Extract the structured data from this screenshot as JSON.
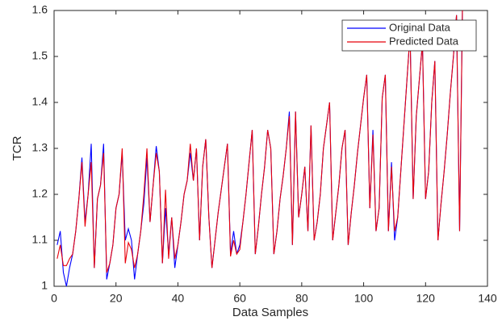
{
  "chart_data": {
    "type": "line",
    "xlabel": "Data Samples",
    "ylabel": "TCR",
    "x": [
      1,
      2,
      3,
      4,
      5,
      6,
      7,
      8,
      9,
      10,
      11,
      12,
      13,
      14,
      15,
      16,
      17,
      18,
      19,
      20,
      21,
      22,
      23,
      24,
      25,
      26,
      27,
      28,
      29,
      30,
      31,
      32,
      33,
      34,
      35,
      36,
      37,
      38,
      39,
      40,
      41,
      42,
      43,
      44,
      45,
      46,
      47,
      48,
      49,
      50,
      51,
      52,
      53,
      54,
      55,
      56,
      57,
      58,
      59,
      60,
      61,
      62,
      63,
      64,
      65,
      66,
      67,
      68,
      69,
      70,
      71,
      72,
      73,
      74,
      75,
      76,
      77,
      78,
      79,
      80,
      81,
      82,
      83,
      84,
      85,
      86,
      87,
      88,
      89,
      90,
      91,
      92,
      93,
      94,
      95,
      96,
      97,
      98,
      99,
      100,
      101,
      102,
      103,
      104,
      105,
      106,
      107,
      108,
      109,
      110,
      111,
      112,
      113,
      114,
      115,
      116,
      117,
      118,
      119,
      120,
      121,
      122,
      123,
      124,
      125,
      126,
      127,
      128,
      129,
      130,
      131,
      132
    ],
    "series": [
      {
        "name": "Original Data",
        "color": "#0000ff",
        "values": [
          1.09,
          1.12,
          1.03,
          1.0,
          1.04,
          1.07,
          1.12,
          1.19,
          1.28,
          1.14,
          1.2,
          1.31,
          1.04,
          1.19,
          1.22,
          1.31,
          1.015,
          1.05,
          1.09,
          1.17,
          1.2,
          1.29,
          1.1,
          1.125,
          1.1,
          1.015,
          1.07,
          1.12,
          1.18,
          1.28,
          1.14,
          1.22,
          1.305,
          1.25,
          1.05,
          1.17,
          1.07,
          1.15,
          1.04,
          1.09,
          1.14,
          1.2,
          1.23,
          1.29,
          1.23,
          1.3,
          1.1,
          1.26,
          1.32,
          1.15,
          1.04,
          1.1,
          1.16,
          1.21,
          1.26,
          1.31,
          1.07,
          1.12,
          1.07,
          1.09,
          1.14,
          1.2,
          1.27,
          1.34,
          1.07,
          1.13,
          1.2,
          1.26,
          1.34,
          1.3,
          1.07,
          1.12,
          1.19,
          1.24,
          1.3,
          1.38,
          1.09,
          1.38,
          1.15,
          1.2,
          1.26,
          1.12,
          1.35,
          1.1,
          1.14,
          1.2,
          1.3,
          1.35,
          1.4,
          1.1,
          1.16,
          1.22,
          1.3,
          1.34,
          1.09,
          1.16,
          1.22,
          1.29,
          1.35,
          1.41,
          1.46,
          1.17,
          1.34,
          1.12,
          1.17,
          1.41,
          1.46,
          1.12,
          1.27,
          1.1,
          1.15,
          1.25,
          1.35,
          1.45,
          1.55,
          1.19,
          1.37,
          1.45,
          1.53,
          1.19,
          1.25,
          1.4,
          1.49,
          1.1,
          1.18,
          1.25,
          1.33,
          1.42,
          1.5,
          1.59,
          1.12,
          1.65
        ]
      },
      {
        "name": "Predicted Data",
        "color": "#e8000b",
        "values": [
          1.06,
          1.09,
          1.045,
          1.045,
          1.06,
          1.07,
          1.12,
          1.19,
          1.27,
          1.13,
          1.2,
          1.27,
          1.04,
          1.19,
          1.22,
          1.29,
          1.03,
          1.05,
          1.09,
          1.17,
          1.2,
          1.3,
          1.05,
          1.095,
          1.08,
          1.04,
          1.07,
          1.12,
          1.2,
          1.3,
          1.14,
          1.22,
          1.29,
          1.25,
          1.05,
          1.21,
          1.06,
          1.15,
          1.06,
          1.09,
          1.14,
          1.2,
          1.23,
          1.31,
          1.23,
          1.3,
          1.1,
          1.26,
          1.32,
          1.15,
          1.04,
          1.1,
          1.16,
          1.21,
          1.26,
          1.31,
          1.065,
          1.1,
          1.07,
          1.08,
          1.14,
          1.2,
          1.27,
          1.34,
          1.07,
          1.13,
          1.2,
          1.26,
          1.34,
          1.3,
          1.07,
          1.12,
          1.19,
          1.24,
          1.3,
          1.37,
          1.09,
          1.38,
          1.15,
          1.2,
          1.26,
          1.12,
          1.35,
          1.1,
          1.14,
          1.2,
          1.3,
          1.35,
          1.4,
          1.1,
          1.16,
          1.22,
          1.3,
          1.34,
          1.09,
          1.16,
          1.22,
          1.29,
          1.35,
          1.41,
          1.46,
          1.17,
          1.33,
          1.12,
          1.17,
          1.41,
          1.46,
          1.12,
          1.26,
          1.12,
          1.15,
          1.25,
          1.35,
          1.45,
          1.55,
          1.19,
          1.37,
          1.45,
          1.53,
          1.19,
          1.25,
          1.4,
          1.49,
          1.1,
          1.18,
          1.25,
          1.33,
          1.42,
          1.5,
          1.59,
          1.12,
          1.65
        ]
      }
    ],
    "xlim": [
      0,
      140
    ],
    "xticks": [
      0,
      20,
      40,
      60,
      80,
      100,
      120,
      140
    ],
    "ylim": [
      1,
      1.6
    ],
    "yticks": [
      1,
      1.1,
      1.2,
      1.3,
      1.4,
      1.5,
      1.6
    ],
    "legend": "upper right",
    "grid": false
  }
}
